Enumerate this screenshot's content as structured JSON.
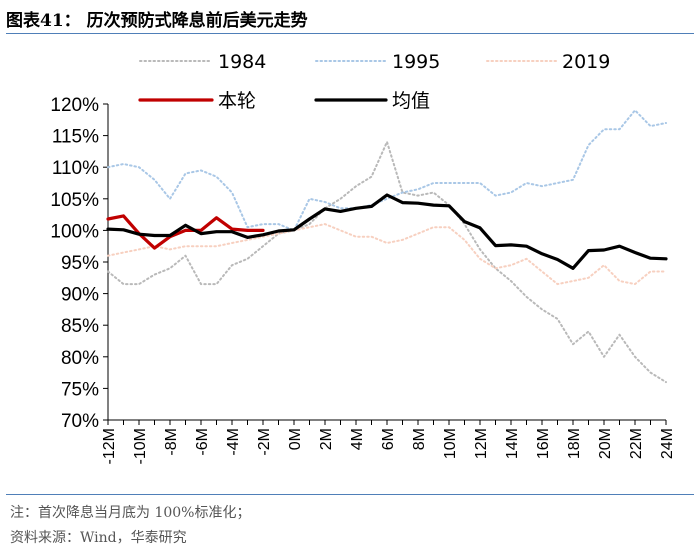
{
  "figure": {
    "title": "图表41： 历次预防式降息前后美元走势",
    "note": "注：首次降息当月底为 100%标准化；",
    "source": "资料来源：Wind，华泰研究"
  },
  "chart_data": {
    "type": "line",
    "title": "历次预防式降息前后美元走势",
    "xlabel": "",
    "ylabel": "",
    "ylim": [
      70,
      120
    ],
    "yticks": [
      70,
      75,
      80,
      85,
      90,
      95,
      100,
      105,
      110,
      115,
      120
    ],
    "ytick_labels": [
      "70%",
      "75%",
      "80%",
      "85%",
      "90%",
      "95%",
      "100%",
      "105%",
      "110%",
      "115%",
      "120%"
    ],
    "xlim": [
      -12,
      24
    ],
    "xticks": [
      -12,
      -10,
      -8,
      -6,
      -4,
      -2,
      0,
      2,
      4,
      6,
      8,
      10,
      12,
      14,
      16,
      18,
      20,
      22,
      24
    ],
    "xtick_labels": [
      "-12M",
      "-10M",
      "-8M",
      "-6M",
      "-4M",
      "-2M",
      "0M",
      "2M",
      "4M",
      "6M",
      "8M",
      "10M",
      "12M",
      "14M",
      "16M",
      "18M",
      "20M",
      "22M",
      "24M"
    ],
    "legend_position": "top",
    "grid": false,
    "series": [
      {
        "name": "1984",
        "color": "#b9b9b9",
        "style": "dotted",
        "x": [
          -12,
          -11,
          -10,
          -9,
          -8,
          -7,
          -6,
          -5,
          -4,
          -3,
          -2,
          -1,
          0,
          1,
          2,
          3,
          4,
          5,
          6,
          7,
          8,
          9,
          10,
          11,
          12,
          13,
          14,
          15,
          16,
          17,
          18,
          19,
          20,
          21,
          22,
          23,
          24
        ],
        "values": [
          93.5,
          91.5,
          91.5,
          93,
          94,
          96,
          91.5,
          91.5,
          94.5,
          95.5,
          97.5,
          99.5,
          100,
          101,
          103.5,
          105,
          107,
          108.5,
          114,
          106,
          105.5,
          106,
          104,
          101,
          97,
          94,
          92,
          89.5,
          87.5,
          86,
          82,
          84,
          80,
          83.5,
          80,
          77.5,
          76
        ]
      },
      {
        "name": "1995",
        "color": "#a9c7e6",
        "style": "dotted",
        "x": [
          -12,
          -11,
          -10,
          -9,
          -8,
          -7,
          -6,
          -5,
          -4,
          -3,
          -2,
          -1,
          0,
          1,
          2,
          3,
          4,
          5,
          6,
          7,
          8,
          9,
          10,
          11,
          12,
          13,
          14,
          15,
          16,
          17,
          18,
          19,
          20,
          21,
          22,
          23,
          24
        ],
        "values": [
          110,
          110.5,
          110,
          108,
          105,
          109,
          109.5,
          108.5,
          106,
          100.5,
          101,
          101,
          100,
          105,
          104.5,
          103.5,
          103.5,
          104,
          105,
          106,
          106.5,
          107.5,
          107.5,
          107.5,
          107.5,
          105.5,
          106,
          107.5,
          107,
          107.5,
          108,
          113.5,
          116,
          116,
          119,
          116.5,
          117
        ]
      },
      {
        "name": "2019",
        "color": "#f7d0c0",
        "style": "dotted",
        "x": [
          -12,
          -11,
          -10,
          -9,
          -8,
          -7,
          -6,
          -5,
          -4,
          -3,
          -2,
          -1,
          0,
          1,
          2,
          3,
          4,
          5,
          6,
          7,
          8,
          9,
          10,
          11,
          12,
          13,
          14,
          15,
          16,
          17,
          18,
          19,
          20,
          21,
          22,
          23,
          24
        ],
        "values": [
          96,
          96.5,
          97,
          97.5,
          97,
          97.5,
          97.5,
          97.5,
          98,
          98.5,
          99,
          99.5,
          100,
          100.5,
          101,
          100,
          99,
          99,
          98,
          98.5,
          99.5,
          100.5,
          100.5,
          98.5,
          95.5,
          94,
          94.5,
          95.5,
          93.5,
          91.5,
          92,
          92.5,
          94.5,
          92,
          91.5,
          93.5,
          93.5
        ]
      },
      {
        "name": "本轮",
        "color": "#c00000",
        "style": "solid",
        "x": [
          -12,
          -11,
          -10,
          -9,
          -8,
          -7,
          -6,
          -5,
          -4,
          -3,
          -2
        ],
        "values": [
          101.8,
          102.3,
          99.5,
          97.2,
          99,
          100,
          100,
          102,
          100.2,
          100,
          100
        ]
      },
      {
        "name": "均值",
        "color": "#000000",
        "style": "solid",
        "x": [
          -12,
          -11,
          -10,
          -9,
          -8,
          -7,
          -6,
          -5,
          -4,
          -3,
          -2,
          -1,
          0,
          1,
          2,
          3,
          4,
          5,
          6,
          7,
          8,
          9,
          10,
          11,
          12,
          13,
          14,
          15,
          16,
          17,
          18,
          19,
          20,
          21,
          22,
          23,
          24
        ],
        "values": [
          100.2,
          100.1,
          99.4,
          99.2,
          99.2,
          100.8,
          99.5,
          99.8,
          99.8,
          98.9,
          99.3,
          99.9,
          100.1,
          101.8,
          103.4,
          103,
          103.5,
          103.8,
          105.6,
          104.4,
          104.3,
          104,
          103.9,
          101.4,
          100.4,
          97.6,
          97.7,
          97.5,
          96.3,
          95.4,
          94,
          96.8,
          96.9,
          97.5,
          96.5,
          95.6,
          95.5
        ]
      }
    ]
  }
}
